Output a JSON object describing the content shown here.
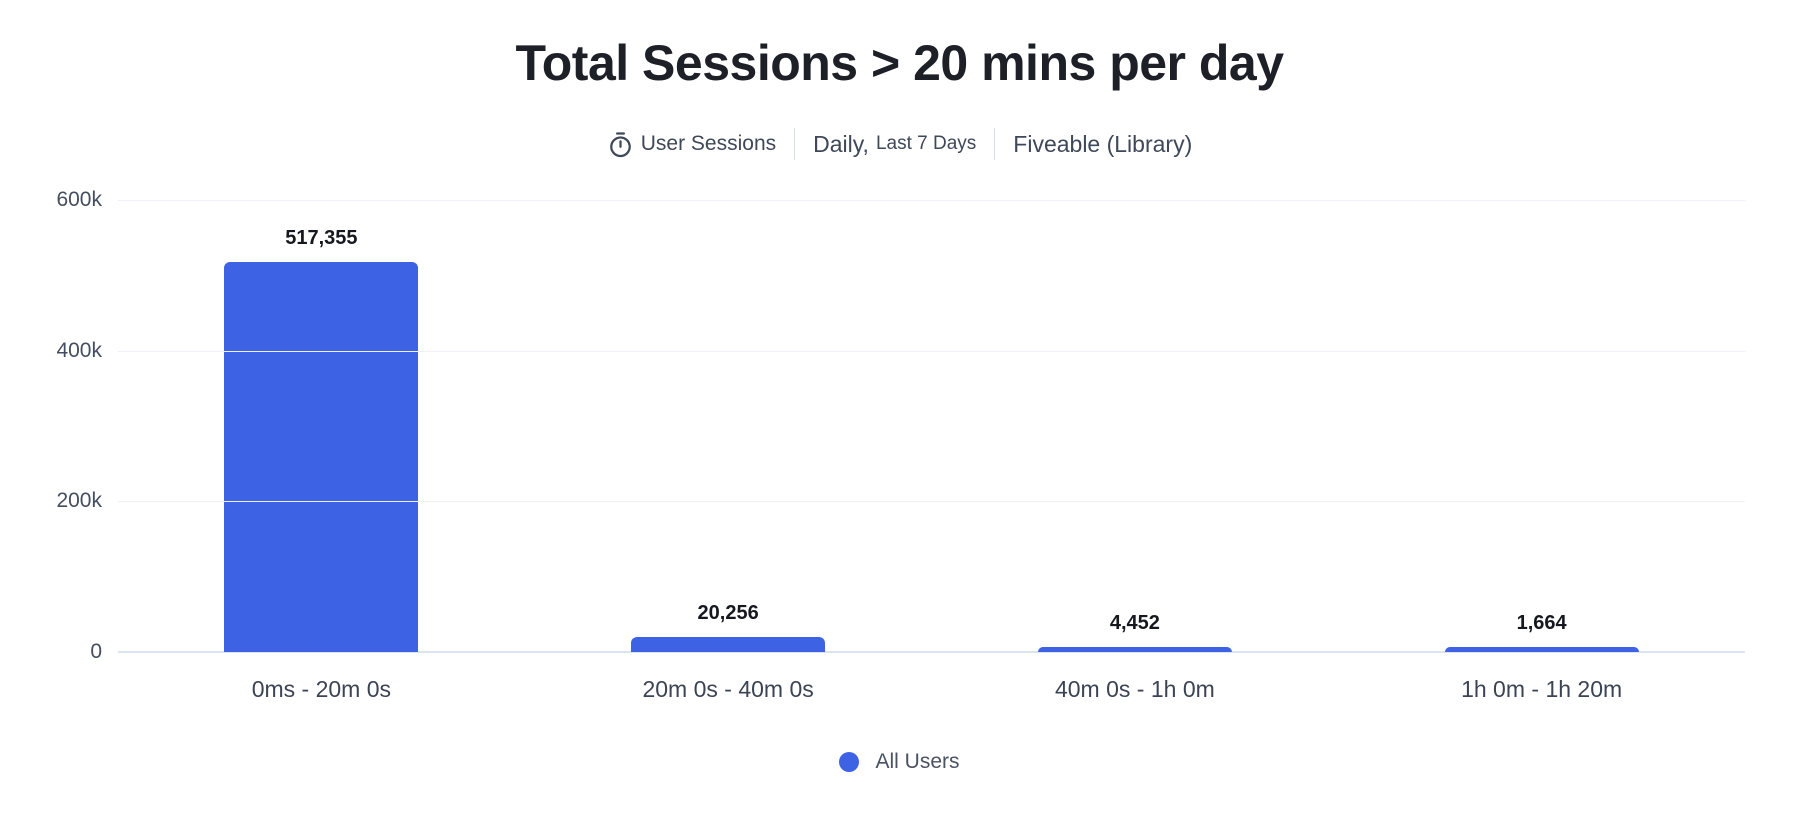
{
  "header": {
    "title": "Total Sessions > 20 mins per day",
    "subtitle": {
      "event_icon": "stopwatch-icon",
      "event_label": "User Sessions",
      "interval": "Daily,",
      "range": "Last 7 Days",
      "segment": "Fiveable (Library)"
    }
  },
  "chart_data": {
    "type": "bar",
    "title": "Total Sessions > 20 mins per day",
    "categories": [
      "0ms - 20m 0s",
      "20m 0s - 40m 0s",
      "40m 0s - 1h 0m",
      "1h 0m - 1h 20m"
    ],
    "values": [
      517355,
      20256,
      4452,
      1664
    ],
    "value_labels": [
      "517,355",
      "20,256",
      "4,452",
      "1,664"
    ],
    "xlabel": "",
    "ylabel": "",
    "ylim": [
      0,
      600000
    ],
    "yticks": [
      {
        "label": "600k",
        "value": 600000
      },
      {
        "label": "400k",
        "value": 400000
      },
      {
        "label": "200k",
        "value": 200000
      },
      {
        "label": "0",
        "value": 0
      }
    ],
    "grid": "horizontal",
    "bar_color": "#3d63e4",
    "legend_position": "bottom",
    "legend": [
      {
        "label": "All Users",
        "color": "#3d63e4"
      }
    ]
  },
  "colors": {
    "accent_blue": "#3d63e4",
    "title_text": "#1d2026",
    "subtitle_text": "#3f4859",
    "axis_text": "#454e5f",
    "gridline": "#eef2f8",
    "baseline": "#dbe4f0"
  }
}
